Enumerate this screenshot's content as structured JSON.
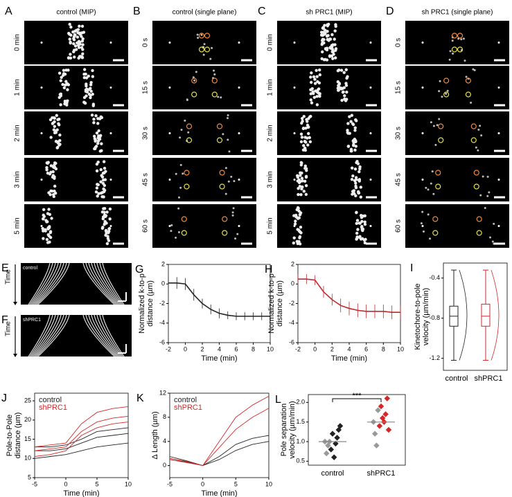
{
  "figure": {
    "panels": [
      {
        "label": "A",
        "title": "control (MIP)",
        "frames": [
          "0 min",
          "1 min",
          "2 min",
          "3 min",
          "5 min"
        ]
      },
      {
        "label": "B",
        "title": "control (single plane)",
        "frames": [
          "0 s",
          "15 s",
          "30 s",
          "45 s",
          "60 s"
        ]
      },
      {
        "label": "C",
        "title": "sh PRC1 (MIP)",
        "frames": [
          "0 min",
          "1 min",
          "2 min",
          "3 min",
          "5 min"
        ]
      },
      {
        "label": "D",
        "title": "sh PRC1 (single plane)",
        "frames": [
          "0 s",
          "15 s",
          "30 s",
          "45 s",
          "60 s"
        ]
      }
    ],
    "kymographs": [
      {
        "label": "E",
        "name": "control",
        "axis": "Time"
      },
      {
        "label": "F",
        "name": "shPRC1",
        "axis": "Time"
      }
    ]
  },
  "chart_data": [
    {
      "panel": "G",
      "type": "line",
      "ylabel": [
        "Normalized k-to-p",
        "distance (µm)"
      ],
      "xlabel": "Time (min)",
      "x": [
        -2,
        -1,
        0,
        1,
        2,
        3,
        4,
        5,
        6,
        7,
        8,
        9,
        10
      ],
      "series": [
        {
          "color": "#222222",
          "values": [
            0.1,
            0.1,
            0.0,
            -1.1,
            -2.0,
            -2.6,
            -3.0,
            -3.2,
            -3.3,
            -3.3,
            -3.3,
            -3.3,
            -3.3
          ],
          "errors": [
            0.6,
            0.6,
            0.6,
            0.6,
            0.5,
            0.5,
            0.5,
            0.4,
            0.4,
            0.4,
            0.4,
            0.4,
            0.4
          ]
        }
      ],
      "xlim": [
        -2,
        10
      ],
      "xticks": [
        -2,
        0,
        2,
        4,
        6,
        8,
        10
      ],
      "ylim": [
        -6,
        2
      ],
      "yticks": [
        -6,
        -4,
        -2,
        0,
        2
      ]
    },
    {
      "panel": "H",
      "type": "line",
      "ylabel": [
        "Normalized k-to-p",
        "distance (µm)"
      ],
      "xlabel": "Time (min)",
      "x": [
        -2,
        -1,
        0,
        1,
        2,
        3,
        4,
        5,
        6,
        7,
        8,
        9,
        10
      ],
      "series": [
        {
          "color": "#c0282d",
          "values": [
            0.5,
            0.5,
            0.4,
            -0.8,
            -1.6,
            -2.2,
            -2.5,
            -2.7,
            -2.8,
            -2.8,
            -2.8,
            -2.9,
            -2.9
          ],
          "errors": [
            0.5,
            0.5,
            0.5,
            0.6,
            0.6,
            0.7,
            0.7,
            0.7,
            0.7,
            0.7,
            0.7,
            0.7,
            0.7
          ]
        }
      ],
      "xlim": [
        -2,
        10
      ],
      "xticks": [
        -2,
        0,
        2,
        4,
        6,
        8,
        10
      ],
      "ylim": [
        -6,
        2
      ],
      "yticks": [
        -6,
        -4,
        -2,
        0,
        2
      ]
    },
    {
      "panel": "I",
      "type": "box",
      "ylabel": [
        "Kinetochore-to-pole",
        "velocity (µm/min)"
      ],
      "categories": [
        "control",
        "shPRC1"
      ],
      "colors": [
        "#222222",
        "#d62728"
      ],
      "boxes": [
        {
          "whislo": -1.22,
          "q1": -0.88,
          "med": -0.78,
          "q3": -0.68,
          "whishi": -0.32
        },
        {
          "whislo": -1.22,
          "q1": -0.88,
          "med": -0.78,
          "q3": -0.66,
          "whishi": -0.32
        }
      ],
      "ylim": [
        -1.32,
        -0.25
      ],
      "yticks": [
        -1.2,
        -0.8,
        -0.4
      ]
    },
    {
      "panel": "J",
      "type": "line",
      "ylabel": [
        "Pole-to-Pole",
        "distance (µm)"
      ],
      "xlabel": "Time (min)",
      "x": [
        -5,
        -2.5,
        0,
        2.5,
        5,
        7.5,
        10
      ],
      "series": [
        {
          "name": "control",
          "color": "#222222",
          "traces": [
            [
              12,
              12,
              12.5,
              14,
              15.5,
              16,
              16.5
            ],
            [
              10,
              10.5,
              11,
              12,
              13,
              13.5,
              14
            ],
            [
              13,
              13,
              13.5,
              15,
              17,
              17.5,
              18
            ]
          ]
        },
        {
          "name": "shPRC1",
          "color": "#d62728",
          "traces": [
            [
              12,
              12.5,
              13,
              17,
              19.5,
              20.5,
              21
            ],
            [
              10.5,
              11,
              12,
              16,
              18,
              19,
              19.5
            ],
            [
              13,
              13.5,
              14,
              19,
              22,
              23,
              23.5
            ]
          ]
        }
      ],
      "xlim": [
        -5,
        10
      ],
      "xticks": [
        -5,
        0,
        5,
        10
      ],
      "ylim": [
        5,
        27
      ],
      "yticks": [
        5,
        10,
        15,
        20,
        25
      ]
    },
    {
      "panel": "K",
      "type": "line",
      "ylabel": [
        "Δ Length (µm)"
      ],
      "xlabel": "Time (min)",
      "x": [
        -5,
        -2.5,
        0,
        2.5,
        5,
        7.5,
        10
      ],
      "series": [
        {
          "name": "control",
          "color": "#222222",
          "traces": [
            [
              1,
              0.6,
              0,
              1.5,
              3.5,
              4.5,
              5
            ],
            [
              1.5,
              0.8,
              0,
              1,
              2.5,
              3.5,
              4
            ]
          ]
        },
        {
          "name": "shPRC1",
          "color": "#d62728",
          "traces": [
            [
              1,
              0.5,
              0,
              3,
              6,
              8,
              9.5
            ],
            [
              1.2,
              0.7,
              0,
              4,
              8,
              10,
              11.5
            ]
          ]
        }
      ],
      "xlim": [
        -5,
        10
      ],
      "xticks": [
        -5,
        0,
        5,
        10
      ],
      "ylim": [
        -2,
        12
      ],
      "yticks": [
        0,
        4,
        8,
        12
      ]
    },
    {
      "panel": "L",
      "type": "strip",
      "ylabel": [
        "Pole separation",
        "velocity (µm/min)"
      ],
      "categories": [
        "control",
        "shPRC1"
      ],
      "colors": [
        "#222222",
        "#d62728"
      ],
      "points": [
        [
          1.0,
          0.8,
          1.1,
          0.7,
          1.2,
          1.3,
          0.9,
          0.6,
          1.4,
          1.0,
          0.95
        ],
        [
          1.5,
          1.4,
          1.7,
          1.2,
          1.9,
          2.1,
          0.9,
          1.6,
          1.3,
          1.8,
          1.5
        ]
      ],
      "means": [
        1.0,
        1.5
      ],
      "annotation": "***",
      "ylim": [
        0.4,
        2.2
      ],
      "yticks": [
        0.5,
        {
          "value": 1.0,
          "label": "1.0"
        },
        1.5,
        {
          "value": 2.0,
          "label": "2.0"
        }
      ]
    }
  ]
}
